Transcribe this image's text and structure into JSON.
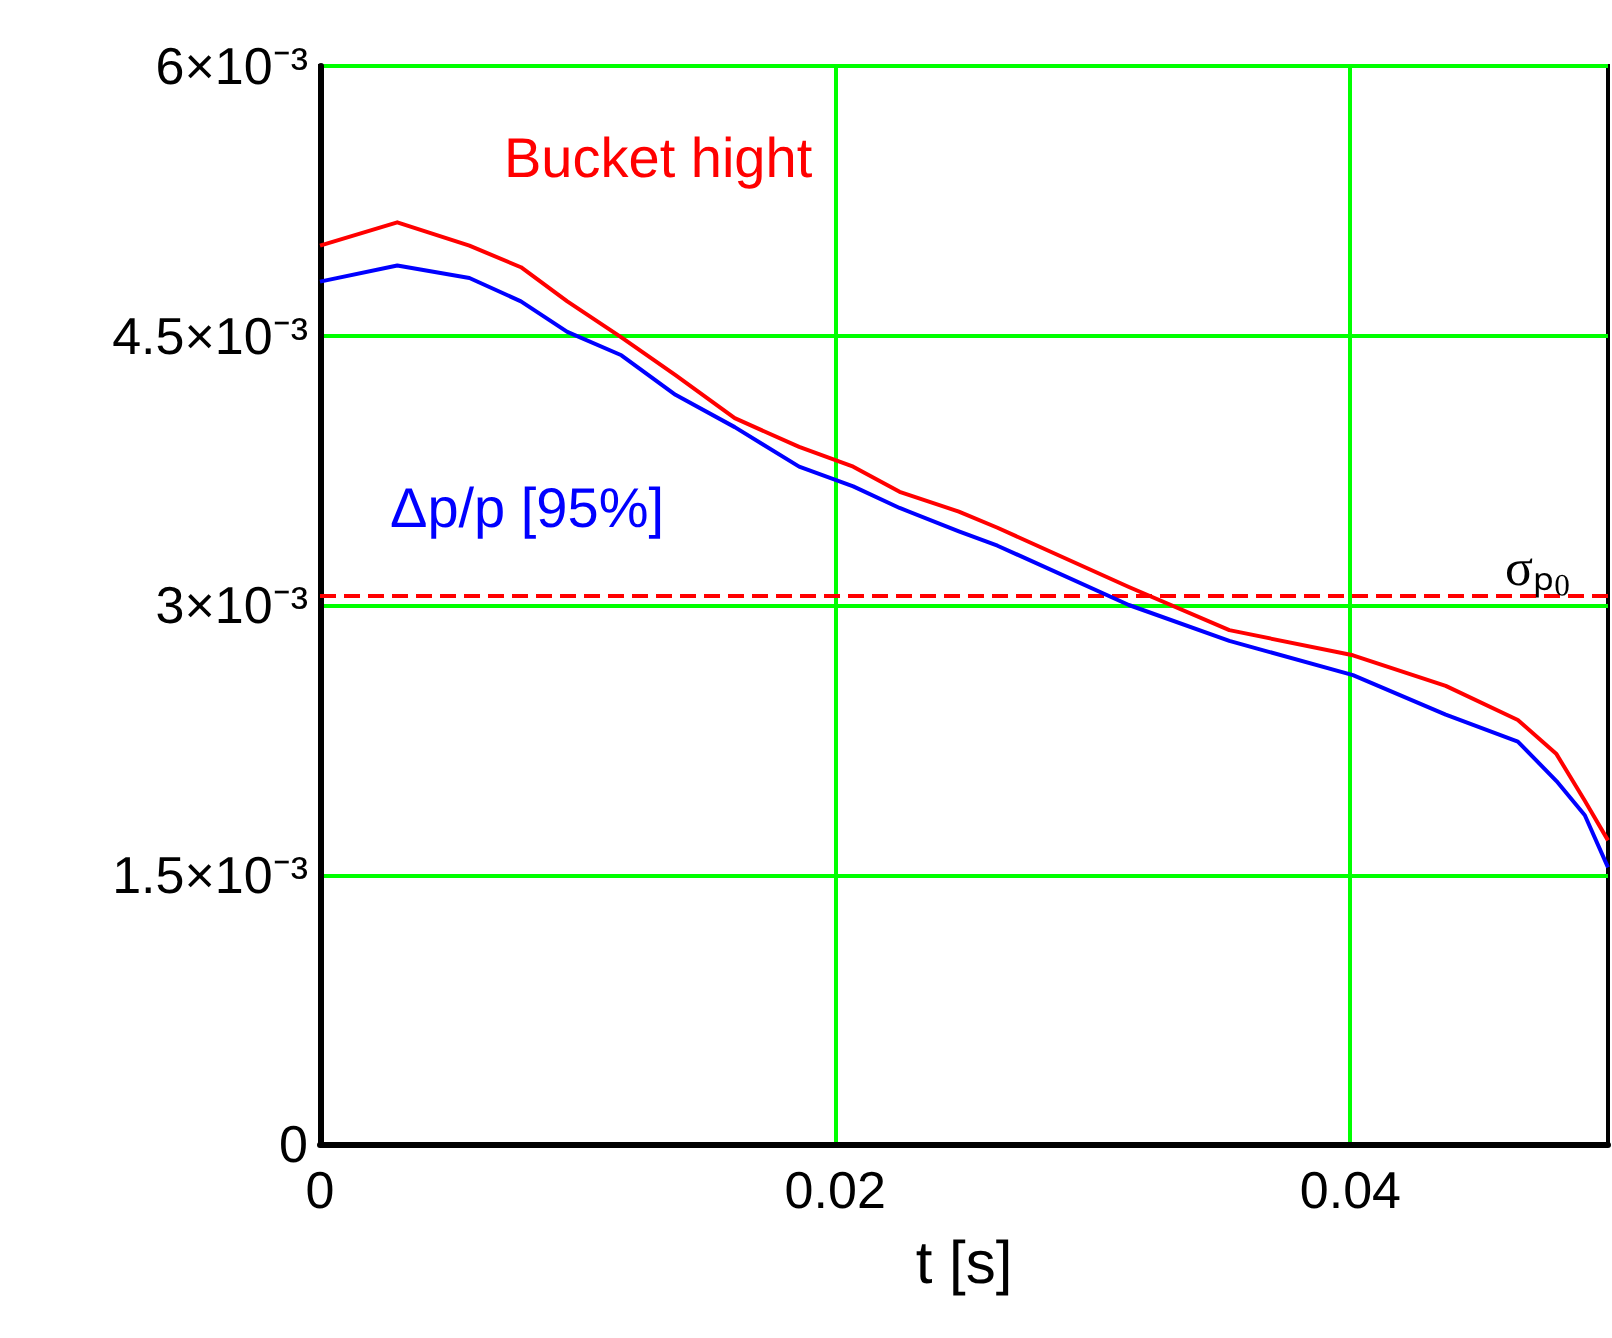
{
  "chart_data": {
    "type": "line",
    "xlabel": "t [s]",
    "x": [
      0,
      0.003,
      0.0058,
      0.0078,
      0.0096,
      0.0117,
      0.0138,
      0.0161,
      0.0186,
      0.0207,
      0.0225,
      0.0248,
      0.0263,
      0.0314,
      0.0353,
      0.0401,
      0.0437,
      0.0465,
      0.048,
      0.0491,
      0.05
    ],
    "series": [
      {
        "name": "Bucket hight",
        "color": "#ff0000",
        "values": [
          0.005,
          0.00513,
          0.005,
          0.00488,
          0.00469,
          0.00449,
          0.00428,
          0.00404,
          0.00388,
          0.00377,
          0.00363,
          0.00352,
          0.00343,
          0.0031,
          0.00286,
          0.00272,
          0.00255,
          0.00236,
          0.00217,
          0.00191,
          0.00169
        ]
      },
      {
        "name": "Δp/p [95%]",
        "color": "#0000ff",
        "values": [
          0.0048,
          0.00489,
          0.00482,
          0.00469,
          0.00452,
          0.00439,
          0.00417,
          0.00399,
          0.00377,
          0.00366,
          0.00354,
          0.00341,
          0.00333,
          0.003,
          0.0028,
          0.00261,
          0.00239,
          0.00224,
          0.00202,
          0.00183,
          0.00154
        ]
      }
    ],
    "xlim": [
      0,
      0.05
    ],
    "xticks": [
      0,
      0.02,
      0.04
    ],
    "ylim": [
      0,
      0.006
    ],
    "yticks": [
      0,
      {
        "value": 0.0015,
        "label": "1.5×10⁻³"
      },
      {
        "value": 0.003,
        "label": "3×10⁻³"
      },
      {
        "value": 0.0045,
        "label": "4.5×10⁻³"
      },
      {
        "value": 0.006,
        "label": "6×10⁻³"
      }
    ],
    "ref_lines": [
      {
        "axis": "y",
        "value": 0.00305,
        "label": "σₚ₀",
        "color": "#ff0000",
        "line_style": "dashed"
      }
    ],
    "grid": true,
    "marker": "none",
    "line_style": "solid"
  }
}
